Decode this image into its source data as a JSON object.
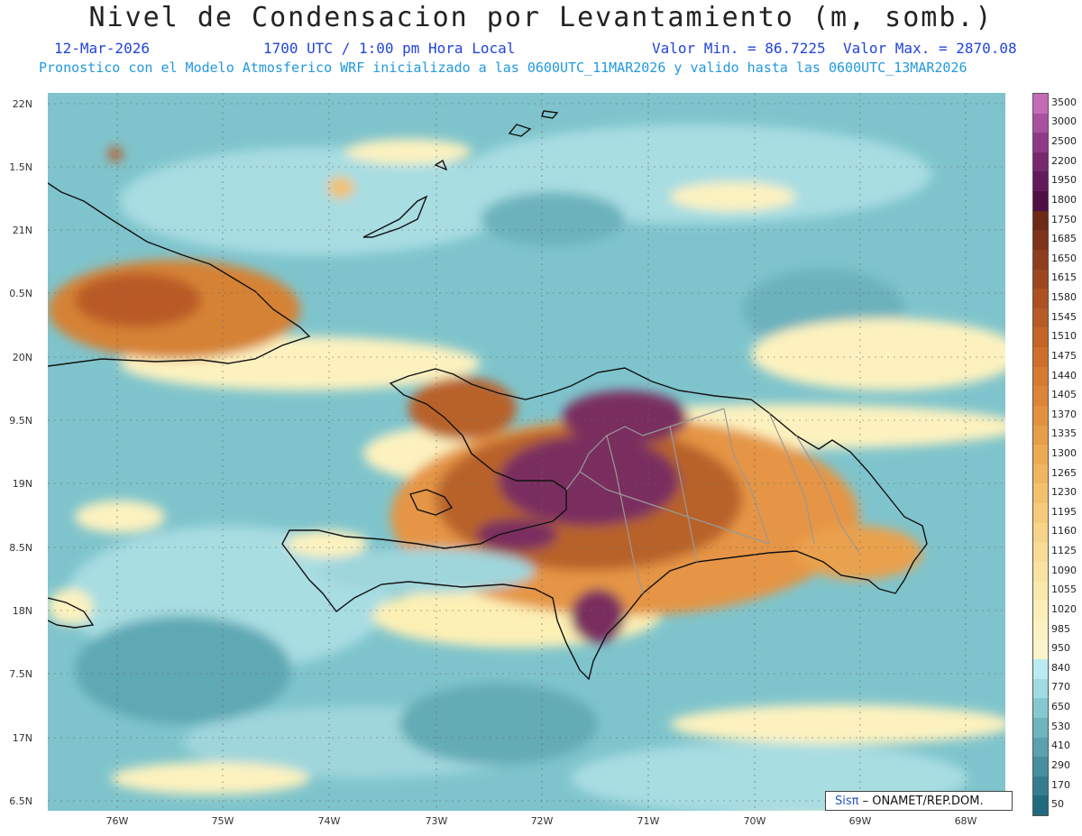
{
  "title": "Nivel de Condensacion por Levantamiento (m, somb.)",
  "date": "12-Mar-2026",
  "time": "1700 UTC / 1:00 pm Hora Local",
  "valor_min": "Valor Min. = 86.7225",
  "valor_max": "Valor Max. = 2870.08",
  "subtitle": "Pronostico con el Modelo Atmosferico WRF inicializado a las 0600UTC_11MAR2026 y valido hasta las  0600UTC_13MAR2026",
  "credit_brand": "Sisπ",
  "credit_text": "– ONAMET/REP.DOM.",
  "axes": {
    "lat_labels": [
      "22N",
      "1.5N",
      "21N",
      "0.5N",
      "20N",
      "9.5N",
      "19N",
      "8.5N",
      "18N",
      "7.5N",
      "17N",
      "6.5N"
    ],
    "lon_labels": [
      "76W",
      "75W",
      "74W",
      "73W",
      "72W",
      "71W",
      "70W",
      "69W",
      "68W"
    ]
  },
  "colorbar": {
    "labels": [
      "3500",
      "3000",
      "2500",
      "2200",
      "1950",
      "1800",
      "1750",
      "1685",
      "1650",
      "1615",
      "1580",
      "1545",
      "1510",
      "1475",
      "1440",
      "1405",
      "1370",
      "1335",
      "1300",
      "1265",
      "1230",
      "1195",
      "1160",
      "1125",
      "1090",
      "1055",
      "1020",
      "985",
      "950",
      "840",
      "770",
      "650",
      "530",
      "410",
      "290",
      "170",
      "50"
    ],
    "colors": [
      "#c46ab6",
      "#a9509e",
      "#8f3a86",
      "#78286f",
      "#631a5b",
      "#4f0f45",
      "#6d2a17",
      "#7e331a",
      "#8f3d1c",
      "#9e471f",
      "#ad5122",
      "#b95b24",
      "#c46527",
      "#ce6f2b",
      "#d67a30",
      "#dd8536",
      "#e3913f",
      "#e89d48",
      "#ecaa53",
      "#f0b65f",
      "#f3c16c",
      "#f5cb7a",
      "#f7d488",
      "#f8dc95",
      "#f9e3a1",
      "#fae9ad",
      "#fbeeb7",
      "#fcf2c1",
      "#fdf5c9",
      "#b9ecf0",
      "#9fdbe0",
      "#86c8cf",
      "#6fb5be",
      "#5aa2ae",
      "#468f9e",
      "#347d8e",
      "#1f6b7d"
    ]
  }
}
